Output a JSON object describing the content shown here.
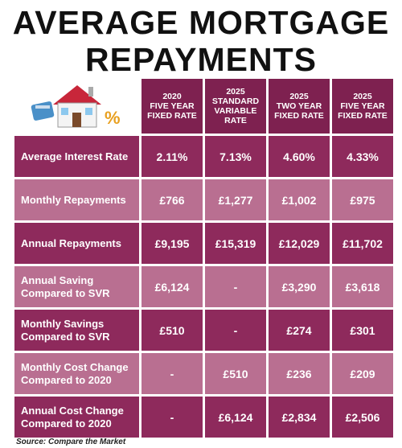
{
  "title": [
    "AVERAGE MORTGAGE",
    "REPAYMENTS"
  ],
  "table": {
    "columns": [
      "2020\nFIVE YEAR\nFIXED RATE",
      "2025\nSTANDARD\nVARIABLE\nRATE",
      "2025\nTWO YEAR\nFIXED RATE",
      "2025\nFIVE YEAR\nFIXED RATE"
    ],
    "rows": [
      {
        "label": "Average Interest Rate",
        "values": [
          "2.11%",
          "7.13%",
          "4.60%",
          "4.33%"
        ]
      },
      {
        "label": "Monthly Repayments",
        "values": [
          "£766",
          "£1,277",
          "£1,002",
          "£975"
        ]
      },
      {
        "label": "Annual Repayments",
        "values": [
          "£9,195",
          "£15,319",
          "£12,029",
          "£11,702"
        ]
      },
      {
        "label": "Annual Saving\nCompared to SVR",
        "values": [
          "£6,124",
          "-",
          "£3,290",
          "£3,618"
        ]
      },
      {
        "label": "Monthly Savings\nCompared to SVR",
        "values": [
          "£510",
          "-",
          "£274",
          "£301"
        ]
      },
      {
        "label": "Monthly Cost Change\nCompared to 2020",
        "values": [
          "-",
          "£510",
          "£236",
          "£209"
        ]
      },
      {
        "label": "Annual Cost Change\nCompared to 2020",
        "values": [
          "-",
          "£6,124",
          "£2,834",
          "£2,506"
        ]
      }
    ]
  },
  "source": "Source: Compare the Market"
}
